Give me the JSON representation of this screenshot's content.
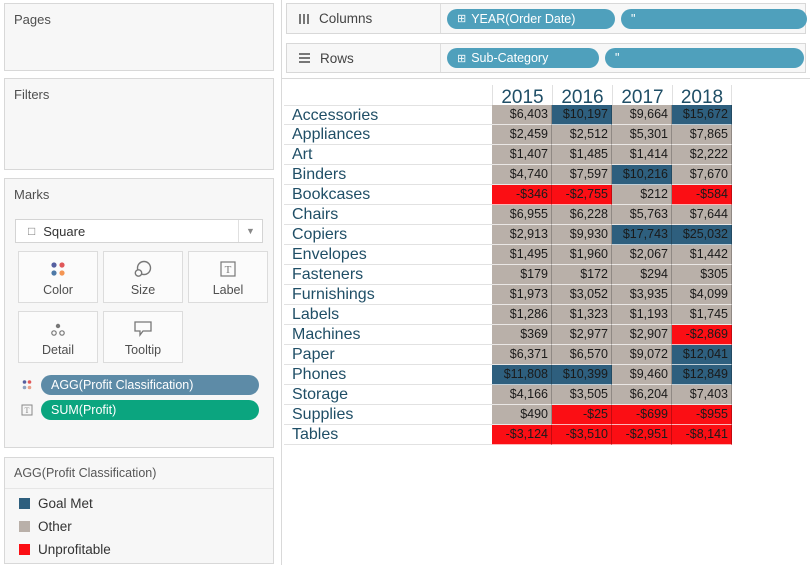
{
  "colors": {
    "goal_met": "#2E5F7E",
    "other": "#B9B0A9",
    "unprofitable": "#FB0E14",
    "pill_blue": "#4FA0BC",
    "pill_marks_blue": "#5D8BA7",
    "pill_green": "#0BA57F",
    "header_text": "#1F4E66"
  },
  "cards": {
    "pages": {
      "title": "Pages"
    },
    "filters": {
      "title": "Filters"
    },
    "marks": {
      "title": "Marks",
      "mark_type": "Square",
      "buttons": {
        "color": "Color",
        "size": "Size",
        "label": "Label",
        "detail": "Detail",
        "tooltip": "Tooltip"
      },
      "pills": [
        {
          "text": "AGG(Profit Classification)",
          "color": "#5D8BA7",
          "icon": "color-dots-icon"
        },
        {
          "text": "SUM(Profit)",
          "color": "#0BA57F",
          "icon": "text-label-icon"
        }
      ]
    }
  },
  "legend": {
    "title": "AGG(Profit Classification)",
    "items": [
      {
        "label": "Goal Met",
        "class": "goal_met",
        "color": "#2E5F7E"
      },
      {
        "label": "Other",
        "class": "other",
        "color": "#B9B0A9"
      },
      {
        "label": "Unprofitable",
        "class": "unprofitable",
        "color": "#FB0E14"
      }
    ]
  },
  "shelves": {
    "columns": {
      "label": "Columns",
      "pills": [
        {
          "text": "YEAR(Order Date)",
          "prefix": "⊞"
        },
        {
          "text": "\""
        }
      ]
    },
    "rows": {
      "label": "Rows",
      "pills": [
        {
          "text": "Sub-Category",
          "prefix": "⊞"
        },
        {
          "text": "\""
        }
      ]
    }
  },
  "chart_data": {
    "type": "heatmap",
    "title": "Profit by Sub-Category and Order Date year (highlight table, colored by Profit Classification)",
    "x": [
      "2015",
      "2016",
      "2017",
      "2018"
    ],
    "legend_classes": {
      "goal_met": "Goal Met",
      "other": "Other",
      "unprofitable": "Unprofitable"
    },
    "rows": [
      {
        "category": "Accessories",
        "values": [
          "$6,403",
          "$10,197",
          "$9,664",
          "$15,672"
        ],
        "classes": [
          "other",
          "goal_met",
          "other",
          "goal_met"
        ]
      },
      {
        "category": "Appliances",
        "values": [
          "$2,459",
          "$2,512",
          "$5,301",
          "$7,865"
        ],
        "classes": [
          "other",
          "other",
          "other",
          "other"
        ]
      },
      {
        "category": "Art",
        "values": [
          "$1,407",
          "$1,485",
          "$1,414",
          "$2,222"
        ],
        "classes": [
          "other",
          "other",
          "other",
          "other"
        ]
      },
      {
        "category": "Binders",
        "values": [
          "$4,740",
          "$7,597",
          "$10,216",
          "$7,670"
        ],
        "classes": [
          "other",
          "other",
          "goal_met",
          "other"
        ]
      },
      {
        "category": "Bookcases",
        "values": [
          "-$346",
          "-$2,755",
          "$212",
          "-$584"
        ],
        "classes": [
          "unprofitable",
          "unprofitable",
          "other",
          "unprofitable"
        ]
      },
      {
        "category": "Chairs",
        "values": [
          "$6,955",
          "$6,228",
          "$5,763",
          "$7,644"
        ],
        "classes": [
          "other",
          "other",
          "other",
          "other"
        ]
      },
      {
        "category": "Copiers",
        "values": [
          "$2,913",
          "$9,930",
          "$17,743",
          "$25,032"
        ],
        "classes": [
          "other",
          "other",
          "goal_met",
          "goal_met"
        ]
      },
      {
        "category": "Envelopes",
        "values": [
          "$1,495",
          "$1,960",
          "$2,067",
          "$1,442"
        ],
        "classes": [
          "other",
          "other",
          "other",
          "other"
        ]
      },
      {
        "category": "Fasteners",
        "values": [
          "$179",
          "$172",
          "$294",
          "$305"
        ],
        "classes": [
          "other",
          "other",
          "other",
          "other"
        ]
      },
      {
        "category": "Furnishings",
        "values": [
          "$1,973",
          "$3,052",
          "$3,935",
          "$4,099"
        ],
        "classes": [
          "other",
          "other",
          "other",
          "other"
        ]
      },
      {
        "category": "Labels",
        "values": [
          "$1,286",
          "$1,323",
          "$1,193",
          "$1,745"
        ],
        "classes": [
          "other",
          "other",
          "other",
          "other"
        ]
      },
      {
        "category": "Machines",
        "values": [
          "$369",
          "$2,977",
          "$2,907",
          "-$2,869"
        ],
        "classes": [
          "other",
          "other",
          "other",
          "unprofitable"
        ]
      },
      {
        "category": "Paper",
        "values": [
          "$6,371",
          "$6,570",
          "$9,072",
          "$12,041"
        ],
        "classes": [
          "other",
          "other",
          "other",
          "goal_met"
        ]
      },
      {
        "category": "Phones",
        "values": [
          "$11,808",
          "$10,399",
          "$9,460",
          "$12,849"
        ],
        "classes": [
          "goal_met",
          "goal_met",
          "other",
          "goal_met"
        ]
      },
      {
        "category": "Storage",
        "values": [
          "$4,166",
          "$3,505",
          "$6,204",
          "$7,403"
        ],
        "classes": [
          "other",
          "other",
          "other",
          "other"
        ]
      },
      {
        "category": "Supplies",
        "values": [
          "$490",
          "-$25",
          "-$699",
          "-$955"
        ],
        "classes": [
          "other",
          "unprofitable",
          "unprofitable",
          "unprofitable"
        ]
      },
      {
        "category": "Tables",
        "values": [
          "-$3,124",
          "-$3,510",
          "-$2,951",
          "-$8,141"
        ],
        "classes": [
          "unprofitable",
          "unprofitable",
          "unprofitable",
          "unprofitable"
        ]
      }
    ]
  }
}
